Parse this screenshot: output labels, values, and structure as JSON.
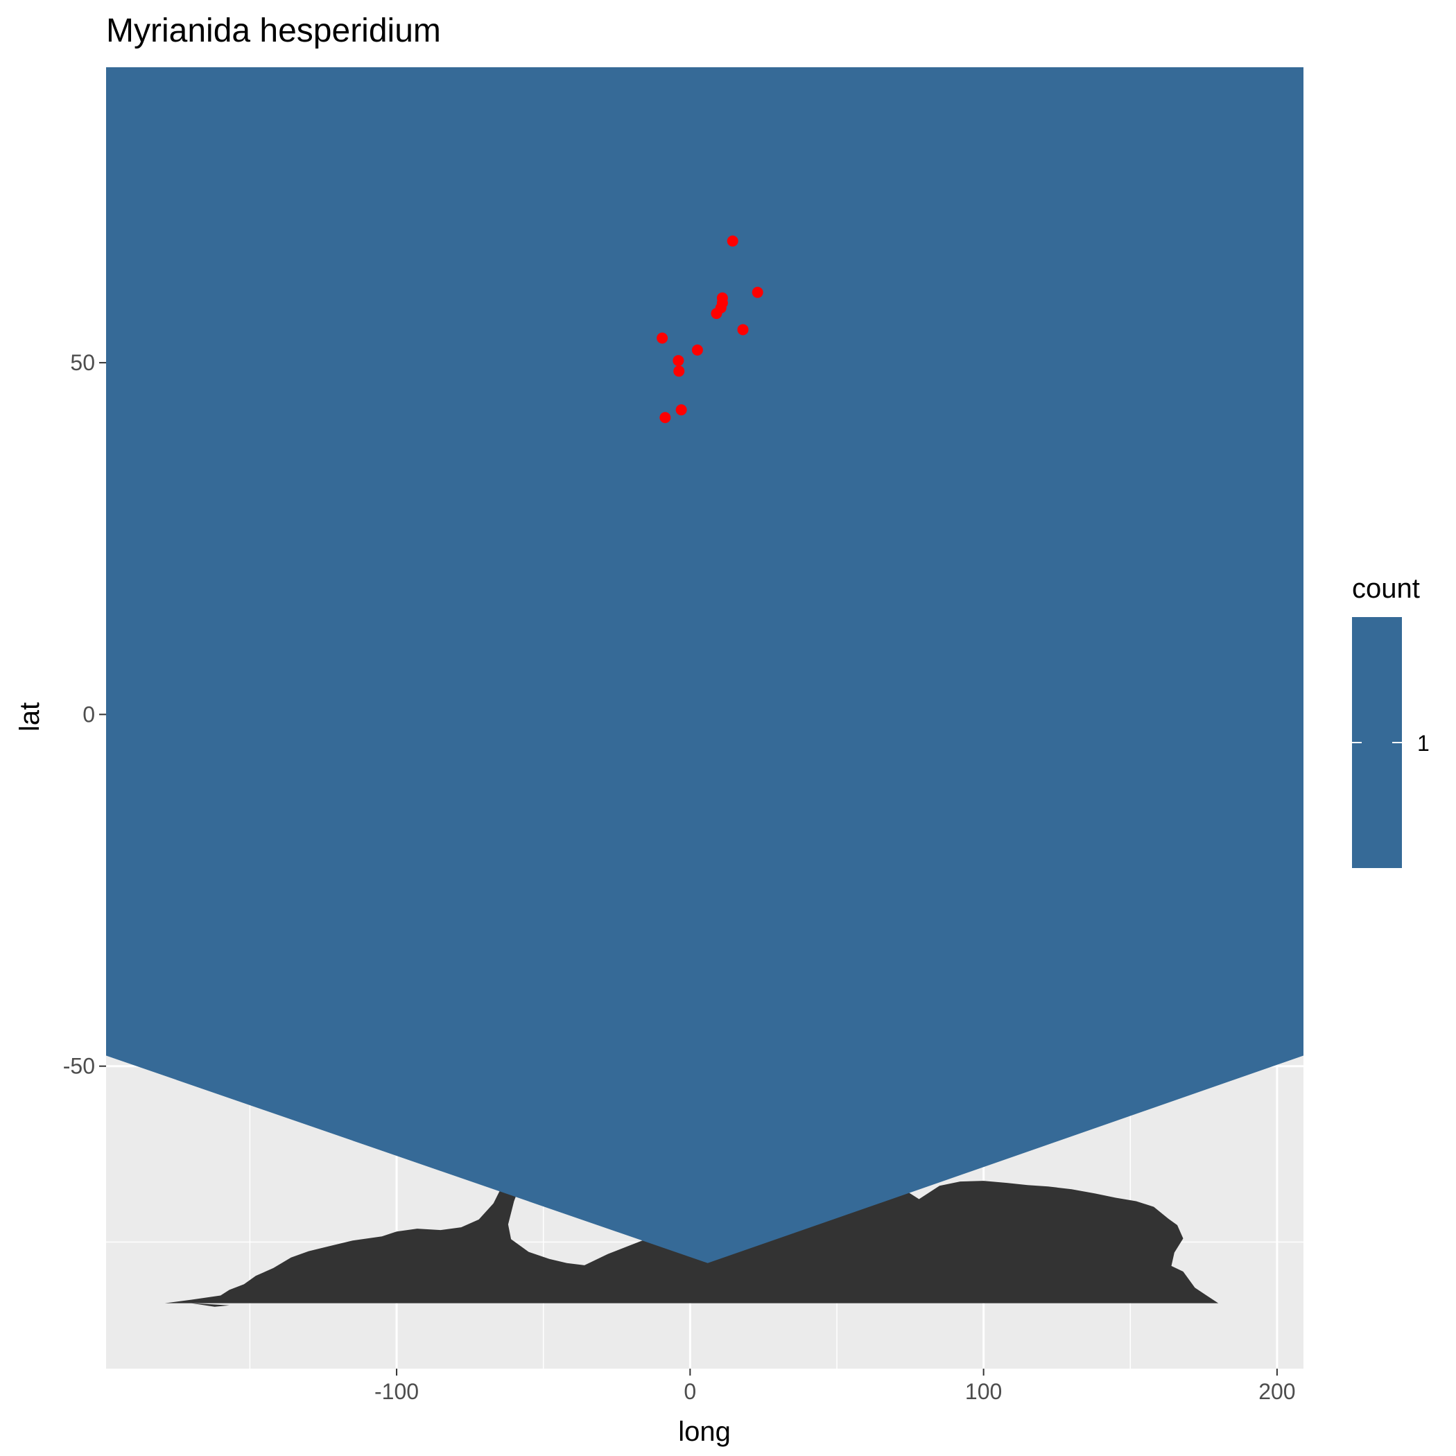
{
  "chart_data": {
    "type": "scatter",
    "title": "Myrianida hesperidium",
    "xlabel": "long",
    "ylabel": "lat",
    "xlim": [
      -199,
      209
    ],
    "ylim": [
      -93,
      92
    ],
    "x_ticks": [
      -100,
      0,
      100,
      200
    ],
    "x_tick_labels": [
      "-100",
      "0",
      "100",
      "200"
    ],
    "y_ticks": [
      -50,
      0,
      50
    ],
    "y_tick_labels": [
      "-50",
      "0",
      "50"
    ],
    "grid": true,
    "panel_background": "#EBEBEB",
    "land_color": "#333333",
    "hex_fill_color": "#366A97",
    "hex_boundary": [
      [
        -199,
        92
      ],
      [
        209,
        92
      ],
      [
        209,
        -48.5
      ],
      [
        6,
        -78
      ],
      [
        -199,
        -48.5
      ]
    ],
    "legend": {
      "title": "count",
      "labels": [
        "1"
      ],
      "position": "right",
      "color": "#366A97"
    },
    "points": {
      "color": "#FF0000",
      "x": [
        14.5,
        23,
        11,
        11,
        10.5,
        9,
        18,
        -9.5,
        2.5,
        -4,
        -3.8,
        -3,
        -8.5
      ],
      "y": [
        67.3,
        60,
        59.2,
        58.5,
        57.8,
        57,
        54.7,
        53.5,
        51.8,
        50.3,
        48.8,
        43.3,
        42.2
      ]
    },
    "land_polygons": [
      [
        [
          -179,
          -83.7
        ],
        [
          -170,
          -83.2
        ],
        [
          -160,
          -82.6
        ],
        [
          -157,
          -81.8
        ],
        [
          -152,
          -81
        ],
        [
          -148,
          -79.8
        ],
        [
          -142,
          -78.7
        ],
        [
          -136,
          -77.2
        ],
        [
          -130,
          -76.3
        ],
        [
          -122,
          -75.5
        ],
        [
          -115,
          -74.8
        ],
        [
          -105,
          -74.2
        ],
        [
          -100,
          -73.5
        ],
        [
          -93,
          -73.1
        ],
        [
          -85,
          -73.3
        ],
        [
          -78,
          -72.9
        ],
        [
          -72,
          -71.8
        ],
        [
          -67,
          -69.5
        ],
        [
          -64,
          -67
        ],
        [
          -62,
          -65.3
        ],
        [
          -59,
          -65.1
        ],
        [
          -58,
          -67
        ],
        [
          -60,
          -69.2
        ],
        [
          -62,
          -72.5
        ],
        [
          -61,
          -74.6
        ],
        [
          -55,
          -76.4
        ],
        [
          -48,
          -77.4
        ],
        [
          -42,
          -78
        ],
        [
          -36,
          -78.3
        ],
        [
          -28,
          -76.7
        ],
        [
          -20,
          -75.4
        ],
        [
          -12,
          -74.1
        ],
        [
          -5,
          -72.8
        ],
        [
          5,
          -72
        ],
        [
          15,
          -71.4
        ],
        [
          25,
          -70.5
        ],
        [
          35,
          -69.6
        ],
        [
          45,
          -68.6
        ],
        [
          55,
          -67.6
        ],
        [
          65,
          -66.9
        ],
        [
          72,
          -67.3
        ],
        [
          78,
          -68.9
        ],
        [
          85,
          -67
        ],
        [
          92,
          -66.4
        ],
        [
          100,
          -66.3
        ],
        [
          108,
          -66.6
        ],
        [
          115,
          -66.9
        ],
        [
          122,
          -67.1
        ],
        [
          130,
          -67.5
        ],
        [
          138,
          -68.1
        ],
        [
          145,
          -68.7
        ],
        [
          152,
          -69.2
        ],
        [
          158,
          -70
        ],
        [
          163,
          -71.7
        ],
        [
          166,
          -72.6
        ],
        [
          168,
          -74.5
        ],
        [
          165,
          -76.5
        ],
        [
          164,
          -78.4
        ],
        [
          168,
          -79.2
        ],
        [
          172,
          -81.5
        ],
        [
          176,
          -82.6
        ],
        [
          180,
          -83.7
        ]
      ],
      [
        [
          -157,
          -84
        ],
        [
          -165,
          -83.8
        ],
        [
          -170,
          -83.7
        ],
        [
          -162,
          -84.2
        ]
      ]
    ]
  }
}
